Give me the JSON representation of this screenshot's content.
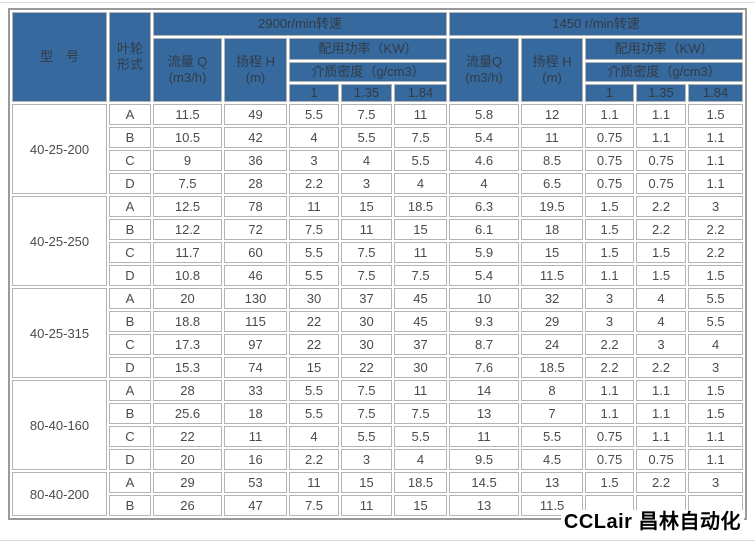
{
  "page": {
    "watermark": "CCLair 昌林自动化"
  },
  "colors": {
    "header_bg": "#36699e",
    "header_text": "#323b46",
    "cell_border": "#b4b4b4",
    "outer_border": "#9a9a9a",
    "data_text": "#4b4b4b"
  },
  "table": {
    "header": {
      "model": "型　号",
      "impeller": "叶轮形式",
      "speed_2900": "2900r/min转速",
      "speed_1450": "1450 r/min转速",
      "flow_2900": {
        "label": "流量 Q",
        "unit": "(m3/h)"
      },
      "head_2900": {
        "label": "扬程 H",
        "unit": "(m)"
      },
      "flow_1450": {
        "label": "流量Q",
        "unit": "(m3/h)"
      },
      "head_1450": {
        "label": "扬程 H",
        "unit": "(m)"
      },
      "power": "配用功率（KW）",
      "density": "介质密度（g/cm3）",
      "density_values": [
        "1",
        "1.35",
        "1.84"
      ]
    },
    "groups": [
      {
        "model": "40-25-200",
        "rows": [
          {
            "type": "A",
            "v": [
              "11.5",
              "49",
              "5.5",
              "7.5",
              "11",
              "5.8",
              "12",
              "1.1",
              "1.1",
              "1.5"
            ]
          },
          {
            "type": "B",
            "v": [
              "10.5",
              "42",
              "4",
              "5.5",
              "7.5",
              "5.4",
              "11",
              "0.75",
              "1.1",
              "1.1"
            ]
          },
          {
            "type": "C",
            "v": [
              "9",
              "36",
              "3",
              "4",
              "5.5",
              "4.6",
              "8.5",
              "0.75",
              "0.75",
              "1.1"
            ]
          },
          {
            "type": "D",
            "v": [
              "7.5",
              "28",
              "2.2",
              "3",
              "4",
              "4",
              "6.5",
              "0.75",
              "0.75",
              "1.1"
            ]
          }
        ]
      },
      {
        "model": "40-25-250",
        "rows": [
          {
            "type": "A",
            "v": [
              "12.5",
              "78",
              "11",
              "15",
              "18.5",
              "6.3",
              "19.5",
              "1.5",
              "2.2",
              "3"
            ]
          },
          {
            "type": "B",
            "v": [
              "12.2",
              "72",
              "7.5",
              "11",
              "15",
              "6.1",
              "18",
              "1.5",
              "2.2",
              "2.2"
            ]
          },
          {
            "type": "C",
            "v": [
              "11.7",
              "60",
              "5.5",
              "7.5",
              "11",
              "5.9",
              "15",
              "1.5",
              "1.5",
              "2.2"
            ]
          },
          {
            "type": "D",
            "v": [
              "10.8",
              "46",
              "5.5",
              "7.5",
              "7.5",
              "5.4",
              "11.5",
              "1.1",
              "1.5",
              "1.5"
            ]
          }
        ]
      },
      {
        "model": "40-25-315",
        "rows": [
          {
            "type": "A",
            "v": [
              "20",
              "130",
              "30",
              "37",
              "45",
              "10",
              "32",
              "3",
              "4",
              "5.5"
            ]
          },
          {
            "type": "B",
            "v": [
              "18.8",
              "115",
              "22",
              "30",
              "45",
              "9.3",
              "29",
              "3",
              "4",
              "5.5"
            ]
          },
          {
            "type": "C",
            "v": [
              "17.3",
              "97",
              "22",
              "30",
              "37",
              "8.7",
              "24",
              "2.2",
              "3",
              "4"
            ]
          },
          {
            "type": "D",
            "v": [
              "15.3",
              "74",
              "15",
              "22",
              "30",
              "7.6",
              "18.5",
              "2.2",
              "2.2",
              "3"
            ]
          }
        ]
      },
      {
        "model": "80-40-160",
        "rows": [
          {
            "type": "A",
            "v": [
              "28",
              "33",
              "5.5",
              "7.5",
              "11",
              "14",
              "8",
              "1.1",
              "1.1",
              "1.5"
            ]
          },
          {
            "type": "B",
            "v": [
              "25.6",
              "18",
              "5.5",
              "7.5",
              "7.5",
              "13",
              "7",
              "1.1",
              "1.1",
              "1.5"
            ]
          },
          {
            "type": "C",
            "v": [
              "22",
              "11",
              "4",
              "5.5",
              "5.5",
              "11",
              "5.5",
              "0.75",
              "1.1",
              "1.1"
            ]
          },
          {
            "type": "D",
            "v": [
              "20",
              "16",
              "2.2",
              "3",
              "4",
              "9.5",
              "4.5",
              "0.75",
              "0.75",
              "1.1"
            ]
          }
        ]
      },
      {
        "model": "80-40-200",
        "rows": [
          {
            "type": "A",
            "v": [
              "29",
              "53",
              "11",
              "15",
              "18.5",
              "14.5",
              "13",
              "1.5",
              "2.2",
              "3"
            ]
          },
          {
            "type": "B",
            "v": [
              "26",
              "47",
              "7.5",
              "11",
              "15",
              "13",
              "11.5",
              "",
              "",
              ""
            ]
          }
        ]
      }
    ]
  }
}
